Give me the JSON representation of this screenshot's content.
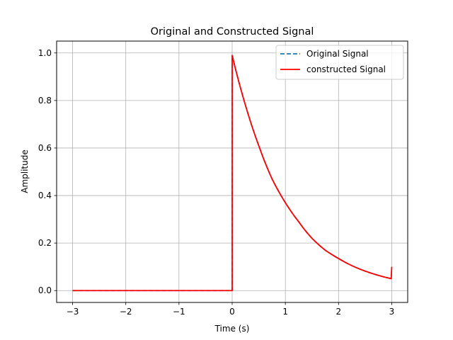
{
  "chart_data": {
    "type": "line",
    "title": "Original and Constructed Signal",
    "xlabel": "Time (s)",
    "ylabel": "Amplitude",
    "xlim": [
      -3.3,
      3.3
    ],
    "ylim": [
      -0.05,
      1.05
    ],
    "xticks": [
      -3,
      -2,
      -1,
      0,
      1,
      2,
      3
    ],
    "xtick_labels": [
      "−3",
      "−2",
      "−1",
      "0",
      "1",
      "2",
      "3"
    ],
    "yticks": [
      0.0,
      0.2,
      0.4,
      0.6,
      0.8,
      1.0
    ],
    "ytick_labels": [
      "0.0",
      "0.2",
      "0.4",
      "0.6",
      "0.8",
      "1.0"
    ],
    "grid": true,
    "legend_position": "top-right",
    "series": [
      {
        "name": "Original Signal",
        "color": "#1f77b4",
        "style": "dashed",
        "points": [
          [
            -3,
            0
          ],
          [
            0,
            0
          ],
          [
            0,
            0.99
          ],
          [
            0.25,
            0.78
          ],
          [
            0.5,
            0.61
          ],
          [
            0.75,
            0.47
          ],
          [
            1,
            0.37
          ],
          [
            1.25,
            0.29
          ],
          [
            1.5,
            0.22
          ],
          [
            1.75,
            0.17
          ],
          [
            2,
            0.135
          ],
          [
            2.25,
            0.105
          ],
          [
            2.5,
            0.082
          ],
          [
            2.75,
            0.064
          ],
          [
            3,
            0.05
          ]
        ]
      },
      {
        "name": "constructed Signal",
        "color": "#ff0000",
        "style": "solid",
        "points": [
          [
            -3,
            0
          ],
          [
            0,
            0
          ],
          [
            0,
            0.99
          ],
          [
            0.25,
            0.78
          ],
          [
            0.5,
            0.61
          ],
          [
            0.75,
            0.47
          ],
          [
            1,
            0.37
          ],
          [
            1.25,
            0.29
          ],
          [
            1.5,
            0.22
          ],
          [
            1.75,
            0.17
          ],
          [
            2,
            0.135
          ],
          [
            2.25,
            0.105
          ],
          [
            2.5,
            0.082
          ],
          [
            2.75,
            0.064
          ],
          [
            2.99,
            0.05
          ],
          [
            3,
            0.1
          ]
        ]
      }
    ]
  }
}
